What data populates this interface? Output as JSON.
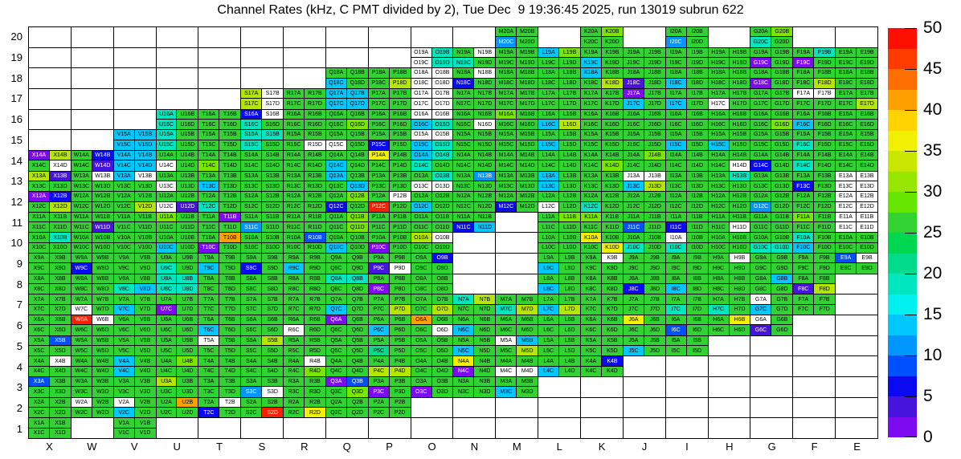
{
  "title": "Channel Rates (kHz, C PMT divided by 2), Tue Dec  9 19:36:45 2025, run 13019 subrun 622",
  "chart_data": {
    "type": "heatmap",
    "title": "Channel Rates (kHz, C PMT divided by 2), Tue Dec  9 19:36:45 2025, run 13019 subrun 622",
    "xlabel": "",
    "ylabel": "",
    "columns": [
      "X",
      "W",
      "V",
      "U",
      "T",
      "S",
      "R",
      "Q",
      "P",
      "O",
      "N",
      "M",
      "L",
      "K",
      "J",
      "I",
      "H",
      "G",
      "F",
      "E"
    ],
    "rows": [
      "20",
      "19",
      "18",
      "17",
      "16",
      "15",
      "14",
      "13",
      "12",
      "11",
      "10",
      "9",
      "8",
      "7",
      "6",
      "5",
      "4",
      "3",
      "2",
      "1"
    ],
    "subcell_order": [
      "A",
      "B",
      "C",
      "D"
    ],
    "value_range": [
      0,
      50
    ],
    "legend_position": "right",
    "palette": {
      "w": "#ffffff",
      "p": "#7d0af0",
      "v": "#4614dc",
      "B": "#0a0af0",
      "u": "#0050ff",
      "b": "#0096ff",
      "c": "#00c8ff",
      "t": "#00e6be",
      "T": "#00dc8c",
      "g": "#32d232",
      "G": "#78e600",
      "y": "#b4e600",
      "Y": "#f0f000",
      "o": "#ffa000",
      "r": "#ff1e00"
    },
    "palette_values": {
      "w": 0,
      "p": 1,
      "v": 4,
      "B": 6,
      "u": 9,
      "b": 11,
      "c": 14,
      "t": 19,
      "T": 21,
      "g": 24,
      "G": 29,
      "y": 33,
      "Y": 36,
      "o": 41,
      "r": 48
    },
    "cells": {
      "X": {
        "14": "pygw",
        "13": "yvgg",
        "12": "pBgy",
        "11": "gggg",
        "10": "gtgg",
        "9": "gggg",
        "8": "gggg",
        "7": "gggg",
        "6": "gggg",
        "5": "gugg",
        "4": "gwgg",
        "3": "uggg",
        "2": "gggg",
        "1": "gggg"
      },
      "W": {
        "14": "gBgv",
        "13": "gwgg",
        "12": "gggg",
        "11": "gggv",
        "10": "gggg",
        "9": "ggBg",
        "8": "gggg",
        "7": "ggwg",
        "6": "rwgg",
        "5": "gggg",
        "4": "gggg",
        "3": "gggg",
        "2": "wggg"
      },
      "V": {
        "15": "cccc",
        "14": "cccc",
        "13": "cwgg",
        "12": "gggy",
        "11": "gggg",
        "10": "gggg",
        "9": "gggg",
        "8": "ggtc",
        "7": "ggcg",
        "6": "gggg",
        "5": "gggg",
        "4": "cgcg",
        "3": "gggg",
        "2": "wgcg",
        "1": "gggg"
      },
      "U": {
        "16": "tgtg",
        "15": "tgtg",
        "14": "ggwg",
        "13": "ggwg",
        "12": "ggwv",
        "11": "Gggg",
        "10": "ggcg",
        "9": "ggtg",
        "8": "tttt",
        "7": "ggpg",
        "6": "gggg",
        "5": "gggg",
        "4": "gGgg",
        "3": "yggg",
        "2": "gogg"
      },
      "T": {
        "16": "gggg",
        "15": "gggg",
        "14": "ggGg",
        "13": "ggcg",
        "12": "ggtg",
        "11": "gpgg",
        "10": "gopg",
        "9": "ggcg",
        "8": "gggg",
        "7": "gggg",
        "6": "ggcg",
        "5": "wggg",
        "4": "gggg",
        "3": "gggg",
        "2": "gwBg"
      },
      "S": {
        "17": "ywyw",
        "16": "Bwtg",
        "15": "tttg",
        "14": "gggg",
        "13": "gggg",
        "12": "gggg",
        "11": "ggbg",
        "10": "gggg",
        "9": "ggBg",
        "8": "gggg",
        "7": "gggg",
        "6": "gggg",
        "5": "gygg",
        "4": "gggg",
        "3": "ggbw",
        "2": "gggr"
      },
      "R": {
        "17": "gggg",
        "16": "gggg",
        "15": "gggw",
        "14": "gggg",
        "13": "gggg",
        "12": "gggg",
        "11": "gggg",
        "10": "gugg",
        "9": "ggcg",
        "8": "gggg",
        "7": "gggg",
        "6": "ggwg",
        "5": "gggg",
        "4": "gwgG",
        "3": "gggg",
        "2": "gggY"
      },
      "Q": {
        "18": "ggcg",
        "17": "cccc",
        "16": "gggG",
        "15": "ggwg",
        "14": "ggcg",
        "13": "cggc",
        "12": "gGBg",
        "11": "gGgG",
        "10": "ggcg",
        "9": "gggg",
        "8": "ttgg",
        "7": "ggcg",
        "6": "pggg",
        "5": "gggg",
        "4": "gggg",
        "3": "pugG",
        "2": "gggg"
      },
      "P": {
        "18": "gggy",
        "17": "gggg",
        "16": "gggg",
        "15": "ggBg",
        "14": "Yggg",
        "13": "gggg",
        "12": "gwrg",
        "11": "gggg",
        "10": "ggpg",
        "9": "ggvw",
        "8": "ggpg",
        "7": "gggy",
        "6": "ggcg",
        "5": "ggTg",
        "4": "ggyy",
        "3": "ggpg",
        "2": "gggg"
      },
      "O": {
        "19": "wtwt",
        "18": "wwww",
        "17": "wwww",
        "16": "wwct",
        "15": "wwct",
        "14": "cttg",
        "13": "gtww",
        "12": "ggcg",
        "11": "gggg",
        "10": "ywgg",
        "9": "gBgg",
        "8": "gggg",
        "7": "gggy",
        "6": "oggw",
        "5": "gggg",
        "4": "gggg",
        "3": "ggpg"
      },
      "N": {
        "19": "gwtg",
        "18": "gwBg",
        "17": "gggg",
        "16": "gggw",
        "15": "gggg",
        "14": "gggg",
        "13": "gbgg",
        "12": "gggg",
        "11": "ggBc",
        "7": "tygg",
        "6": "ggcg",
        "5": "ggcg",
        "4": "Ygpg",
        "3": "gggg"
      },
      "M": {
        "20": "ggbg",
        "19": "gggg",
        "18": "gggg",
        "17": "gggg",
        "16": "Gggg",
        "15": "gggg",
        "14": "gggg",
        "13": "gggg",
        "12": "ggBg",
        "7": "ggty",
        "6": "gggg",
        "5": "wcgy",
        "4": "ggww",
        "3": "ggcg"
      },
      "L": {
        "19": "cGgg",
        "18": "gggg",
        "17": "gggg",
        "16": "ggcy",
        "15": "ggcg",
        "14": "gggg",
        "13": "cgcg",
        "12": "ggwg",
        "11": "gGgg",
        "10": "gggg",
        "9": "ggcg",
        "8": "ggcg",
        "7": "ggcy",
        "6": "gggg",
        "5": "gggg",
        "4": "ggcg"
      },
      "K": {
        "20": "gGgg",
        "19": "ggcg",
        "18": "cggy",
        "17": "gggg",
        "16": "gggg",
        "15": "gggg",
        "14": "gggG",
        "13": "gggg",
        "12": "ggtg",
        "11": "Gggg",
        "10": "YggY",
        "9": "gwgg",
        "8": "gggg",
        "7": "gggg",
        "6": "gggg",
        "5": "gggg",
        "4": "gBgg"
      },
      "J": {
        "19": "gggg",
        "18": "ggvg",
        "17": "pgcg",
        "16": "gggg",
        "15": "gggg",
        "14": "gGgg",
        "13": "wwcy",
        "12": "gggg",
        "11": "ggug",
        "10": "ggtg",
        "9": "gggg",
        "8": "ggBg",
        "7": "gggg",
        "6": "Yggg",
        "5": "ggcg"
      },
      "I": {
        "20": "ggbg",
        "19": "gggg",
        "18": "ggcg",
        "17": "ggcg",
        "16": "gggg",
        "15": "ggcg",
        "14": "gggg",
        "13": "gggg",
        "12": "gggg",
        "11": "ggBg",
        "10": "wgtg",
        "9": "gggg",
        "8": "ggcg",
        "7": "ggtg",
        "6": "ggug",
        "5": "gggg"
      },
      "H": {
        "19": "gggg",
        "18": "gggg",
        "17": "ggwg",
        "16": "gggg",
        "15": "ggcg",
        "14": "gggw",
        "13": "gtgg",
        "12": "gggg",
        "11": "gggw",
        "10": "gggg",
        "9": "gwgg",
        "8": "gggg",
        "7": "ggtg",
        "6": "gYgg"
      },
      "G": {
        "20": "gGtg",
        "19": "ggpg",
        "18": "ggpg",
        "17": "gggg",
        "16": "gggG",
        "15": "gggg",
        "14": "ggBg",
        "13": "gggg",
        "12": "ggbg",
        "11": "gggg",
        "10": "ggtt",
        "9": "gggg",
        "8": "gcgg",
        "7": "wgcg",
        "6": "wgvg"
      },
      "F": {
        "19": "gtpg",
        "18": "gggy",
        "17": "wwgg",
        "16": "ggcg",
        "15": "ggtg",
        "14": "ggtg",
        "13": "ggBg",
        "12": "gggg",
        "11": "Gggg",
        "10": "tgcg",
        "9": "gggg",
        "8": "ggvy",
        "7": "gggg"
      },
      "E": {
        "19": "gggg",
        "18": "gggg",
        "17": "gggy",
        "16": "gggg",
        "15": "gggg",
        "14": "gggg",
        "13": "wwww",
        "12": "wwww",
        "11": "wwww",
        "10": "gggg",
        "9": "uwgg"
      }
    },
    "colorbar": {
      "min": 0,
      "max": 50,
      "tick_labels_top_to_bottom": [
        "50",
        "45",
        "40",
        "35",
        "30",
        "25",
        "20",
        "15",
        "10",
        "5",
        "0"
      ],
      "segments_top_to_bottom": [
        "#ff0f00",
        "#ff3c00",
        "#ff6e00",
        "#ffa000",
        "#ffd200",
        "#f0f000",
        "#c8e600",
        "#96e600",
        "#64e600",
        "#32d232",
        "#00d750",
        "#00dc8c",
        "#00e6be",
        "#00f0f0",
        "#00c8ff",
        "#0096ff",
        "#0050ff",
        "#0a0af0",
        "#4614dc",
        "#7d0af0"
      ]
    }
  }
}
